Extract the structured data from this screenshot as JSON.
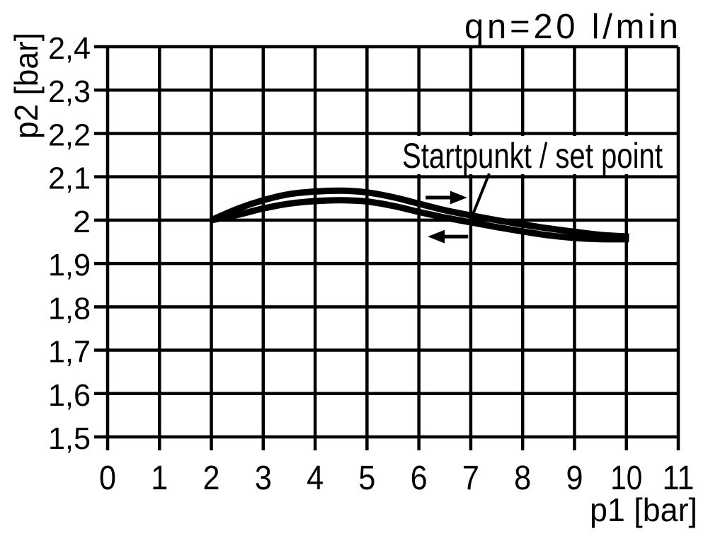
{
  "colors": {
    "line": "#000000",
    "background": "#ffffff"
  },
  "chart_data": {
    "type": "line",
    "flow_note": "qn=20 l/min",
    "xlabel": "p1 [bar]",
    "ylabel": "p2 [bar]",
    "xlim": [
      0,
      11
    ],
    "ylim": [
      1.5,
      2.4
    ],
    "grid": true,
    "legend": "none",
    "x_tick_values": [
      0,
      1,
      2,
      3,
      4,
      5,
      6,
      7,
      8,
      9,
      10,
      11
    ],
    "x_tick_labels": [
      "0",
      "1",
      "2",
      "3",
      "4",
      "5",
      "6",
      "7",
      "8",
      "9",
      "10",
      "11"
    ],
    "y_tick_values": [
      2.4,
      2.3,
      2.2,
      2.1,
      2.0,
      1.9,
      1.8,
      1.7,
      1.6,
      1.5
    ],
    "y_tick_labels": [
      "2,4",
      "2,3",
      "2,2",
      "2,1",
      "2",
      "1,9",
      "1,8",
      "1,7",
      "1,6",
      "1,5"
    ],
    "series": [
      {
        "name": "forward stroke (p1 increasing)",
        "arrow": "right",
        "x": [
          2,
          2.5,
          3,
          3.5,
          4,
          4.5,
          5,
          5.5,
          6,
          6.5,
          7,
          7.5,
          8,
          8.5,
          9,
          9.5,
          10.05
        ],
        "y": [
          2.0,
          2.026,
          2.046,
          2.06,
          2.066,
          2.068,
          2.064,
          2.053,
          2.038,
          2.023,
          2.011,
          2.0,
          1.99,
          1.981,
          1.973,
          1.966,
          1.962
        ]
      },
      {
        "name": "return stroke (p1 decreasing)",
        "arrow": "left",
        "x": [
          2,
          2.5,
          3,
          3.5,
          4,
          4.5,
          5,
          5.5,
          6,
          6.5,
          7,
          7.5,
          8,
          8.5,
          9,
          9.5,
          10.05
        ],
        "y": [
          2.0,
          2.012,
          2.027,
          2.038,
          2.044,
          2.046,
          2.043,
          2.033,
          2.019,
          2.006,
          1.995,
          1.984,
          1.974,
          1.965,
          1.959,
          1.956,
          1.956
        ]
      }
    ],
    "direction_arrows": [
      {
        "direction": "right",
        "x_start": 6.13,
        "x_end": 6.93,
        "y": 2.052
      },
      {
        "direction": "left",
        "x_start": 6.95,
        "x_end": 6.17,
        "y": 1.962
      }
    ],
    "annotation": {
      "text": "Startpunkt / set point",
      "target_x": 7.04,
      "target_y": 2.013
    }
  }
}
